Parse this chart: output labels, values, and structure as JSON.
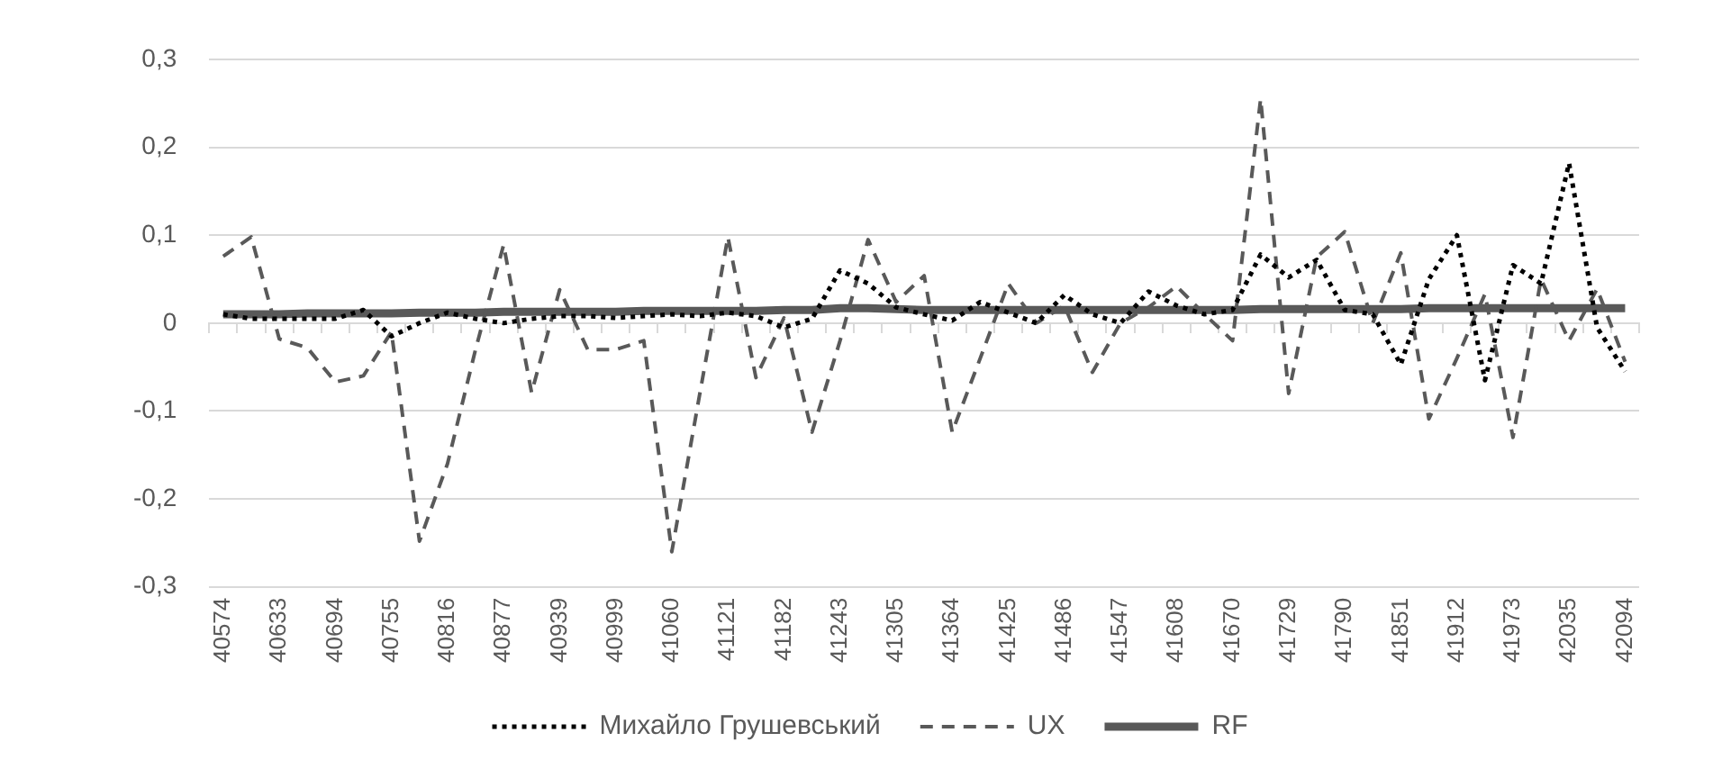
{
  "chart_data": {
    "type": "line",
    "categories": [
      "40574",
      null,
      "40633",
      null,
      "40694",
      null,
      "40755",
      null,
      "40816",
      null,
      "40877",
      null,
      "40939",
      null,
      "40999",
      null,
      "41060",
      null,
      "41121",
      null,
      "41182",
      null,
      "41243",
      null,
      "41305",
      null,
      "41364",
      null,
      "41425",
      null,
      "41486",
      null,
      "41547",
      null,
      "41608",
      null,
      "41670",
      null,
      "41729",
      null,
      "41790",
      null,
      "41851",
      null,
      "41912",
      null,
      "41973",
      null,
      "42035",
      null,
      "42094"
    ],
    "series": [
      {
        "name": "Михайло Грушевський",
        "color": "#000000",
        "line_style": "dotted",
        "values": [
          0.01,
          0.005,
          0.005,
          0.005,
          0.005,
          0.015,
          -0.015,
          0.0,
          0.012,
          0.005,
          0.0,
          0.005,
          0.008,
          0.008,
          0.006,
          0.008,
          0.01,
          0.008,
          0.012,
          0.008,
          -0.005,
          0.005,
          0.06,
          0.045,
          0.018,
          0.01,
          0.003,
          0.024,
          0.012,
          0.0,
          0.032,
          0.01,
          0.0,
          0.036,
          0.02,
          0.01,
          0.015,
          0.078,
          0.052,
          0.072,
          0.015,
          0.01,
          -0.047,
          0.05,
          0.1,
          -0.065,
          0.066,
          0.045,
          0.182,
          -0.005,
          -0.055
        ]
      },
      {
        "name": "UX",
        "color": "#595959",
        "line_style": "dashed",
        "values": [
          0.076,
          0.098,
          -0.018,
          -0.028,
          -0.067,
          -0.06,
          -0.01,
          -0.248,
          -0.16,
          -0.03,
          0.089,
          -0.079,
          0.038,
          -0.03,
          -0.03,
          -0.02,
          -0.26,
          -0.08,
          0.098,
          -0.062,
          0.006,
          -0.124,
          -0.02,
          0.095,
          0.024,
          0.054,
          -0.124,
          -0.04,
          0.045,
          0.0,
          0.02,
          -0.056,
          0.0,
          0.018,
          0.042,
          0.01,
          -0.02,
          0.255,
          -0.08,
          0.075,
          0.104,
          0.0,
          0.08,
          -0.109,
          -0.04,
          0.033,
          -0.13,
          0.05,
          -0.02,
          0.039,
          -0.044
        ]
      },
      {
        "name": "RF",
        "color": "#595959",
        "line_style": "solid",
        "values": [
          0.01,
          0.01,
          0.01,
          0.011,
          0.011,
          0.011,
          0.011,
          0.012,
          0.012,
          0.012,
          0.013,
          0.013,
          0.013,
          0.013,
          0.013,
          0.014,
          0.014,
          0.014,
          0.014,
          0.014,
          0.015,
          0.015,
          0.017,
          0.017,
          0.016,
          0.015,
          0.015,
          0.015,
          0.015,
          0.015,
          0.015,
          0.015,
          0.015,
          0.015,
          0.015,
          0.015,
          0.015,
          0.016,
          0.016,
          0.016,
          0.016,
          0.016,
          0.016,
          0.017,
          0.017,
          0.017,
          0.017,
          0.017,
          0.017,
          0.017,
          0.017
        ]
      }
    ],
    "ylim": [
      -0.3,
      0.3
    ],
    "yticks": [
      {
        "value": -0.3,
        "label": "-0,3"
      },
      {
        "value": -0.2,
        "label": "-0,2"
      },
      {
        "value": -0.1,
        "label": "-0,1"
      },
      0,
      {
        "value": 0.1,
        "label": "0,1"
      },
      {
        "value": 0.2,
        "label": "0,2"
      },
      {
        "value": 0.3,
        "label": "0,3"
      }
    ],
    "grid": "y",
    "legend": "bottom",
    "marker": "none"
  }
}
